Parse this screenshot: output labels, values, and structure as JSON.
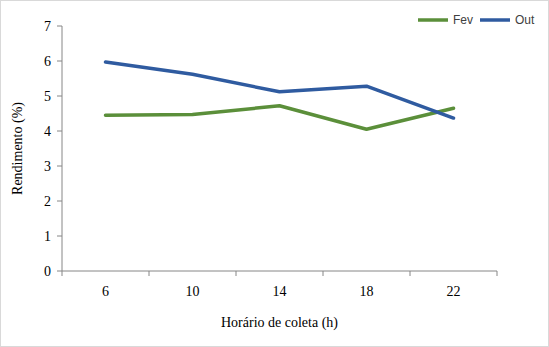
{
  "chart_data": {
    "type": "line",
    "x_label": "Horário de coleta (h)",
    "y_label": "Rendimento (%)",
    "categories": [
      "6",
      "10",
      "14",
      "18",
      "22"
    ],
    "series": [
      {
        "name": "Fev",
        "color": "#5b8f3a",
        "values": [
          4.45,
          4.47,
          4.72,
          4.05,
          4.65
        ]
      },
      {
        "name": "Out",
        "color": "#2f5ba0",
        "values": [
          5.97,
          5.62,
          5.12,
          5.28,
          4.37
        ]
      }
    ],
    "ylim": [
      0,
      7
    ],
    "yticks": [
      0,
      1,
      2,
      3,
      4,
      5,
      6,
      7
    ],
    "grid": false,
    "legend": "top-right"
  }
}
